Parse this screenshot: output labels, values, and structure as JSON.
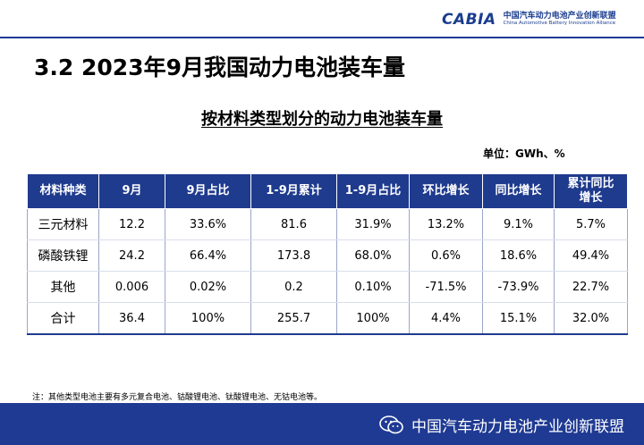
{
  "logo": {
    "mark": "CABIA",
    "cn": "中国汽车动力电池产业创新联盟",
    "en": "China Automotive Battery Innovation Alliance"
  },
  "section_title": "3.2  2023年9月我国动力电池装车量",
  "table_title": "按材料类型划分的动力电池装车量",
  "unit": "单位：GWh、%",
  "table": {
    "headers": [
      "材料种类",
      "9月",
      "9月占比",
      "1-9月累计",
      "1-9月占比",
      "环比增长",
      "同比增长",
      "累计同比增长"
    ],
    "rows": [
      [
        "三元材料",
        "12.2",
        "33.6%",
        "81.6",
        "31.9%",
        "13.2%",
        "9.1%",
        "5.7%"
      ],
      [
        "磷酸铁锂",
        "24.2",
        "66.4%",
        "173.8",
        "68.0%",
        "0.6%",
        "18.6%",
        "49.4%"
      ],
      [
        "其他",
        "0.006",
        "0.02%",
        "0.2",
        "0.10%",
        "-71.5%",
        "-73.9%",
        "22.7%"
      ],
      [
        "合计",
        "36.4",
        "100%",
        "255.7",
        "100%",
        "4.4%",
        "15.1%",
        "32.0%"
      ]
    ]
  },
  "note": "注：其他类型电池主要有多元复合电池、钴酸锂电池、钛酸锂电池、无钴电池等。",
  "footer": {
    "text": "中国汽车动力电池产业创新联盟",
    "icon": "wechat-icon"
  },
  "colors": {
    "header_bg": "#1f3b8e",
    "footer_bg": "#1f3a93",
    "brand": "#1a3d8f"
  }
}
